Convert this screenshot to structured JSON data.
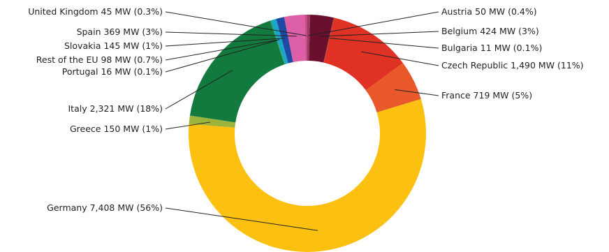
{
  "chart_data": {
    "type": "pie",
    "donut": true,
    "unit": "MW",
    "slices": [
      {
        "name": "Austria",
        "value": 50,
        "label": "Austria 50 MW (0.4%)",
        "color": "#9c3a6a",
        "side": "right"
      },
      {
        "name": "Belgium",
        "value": 424,
        "label": "Belgium 424 MW (3%)",
        "color": "#6b0f2e",
        "side": "right"
      },
      {
        "name": "Bulgaria",
        "value": 11,
        "label": "Bulgaria 11 MW (0.1%)",
        "color": "#b03a3a",
        "side": "right"
      },
      {
        "name": "Czech Republic",
        "value": 1490,
        "label": "Czech Republic 1,490 MW (11%)",
        "color": "#e03224",
        "side": "right"
      },
      {
        "name": "France",
        "value": 719,
        "label": "France 719 MW (5%)",
        "color": "#e8582a",
        "side": "right"
      },
      {
        "name": "Germany",
        "value": 7408,
        "label": "Germany 7,408 MW (56%)",
        "color": "#fbc010",
        "side": "left"
      },
      {
        "name": "Greece",
        "value": 150,
        "label": "Greece 150 MW (1%)",
        "color": "#9db43c",
        "side": "left"
      },
      {
        "name": "Italy",
        "value": 2321,
        "label": "Italy 2,321 MW (18%)",
        "color": "#137a3e",
        "side": "left"
      },
      {
        "name": "Portugal",
        "value": 16,
        "label": "Portugal 16 MW (0.1%)",
        "color": "#2d9a5a",
        "side": "left"
      },
      {
        "name": "Rest of the EU",
        "value": 98,
        "label": "Rest of the EU 98 MW (0.7%)",
        "color": "#1aa6c8",
        "side": "left"
      },
      {
        "name": "Slovakia",
        "value": 145,
        "label": "Slovakia 145 MW (1%)",
        "color": "#1f4aa3",
        "side": "left"
      },
      {
        "name": "Spain",
        "value": 369,
        "label": "Spain 369 MW (3%)",
        "color": "#dc5fa8",
        "side": "left"
      },
      {
        "name": "United Kingdom",
        "value": 45,
        "label": "United Kingdom 45 MW (0.3%)",
        "color": "#c94a84",
        "side": "left"
      }
    ]
  }
}
